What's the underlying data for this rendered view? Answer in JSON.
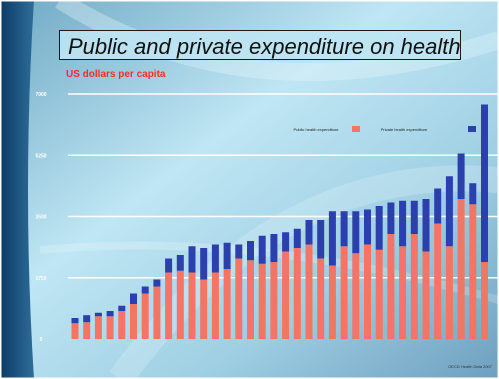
{
  "slide": {
    "title": "Public and private expenditure on health",
    "subtitle": "US dollars per capita"
  },
  "chart_data": {
    "type": "bar",
    "stacked": true,
    "title": "Public and private expenditure on health",
    "subtitle": "US dollars per capita",
    "ylim": [
      0,
      7000
    ],
    "yticks": [
      0,
      1750,
      3500,
      5250,
      7000
    ],
    "gridlines": true,
    "legend_position": "top-right",
    "source": "OECD Health Data 2007",
    "categories": [
      "",
      "",
      "",
      "",
      "",
      "",
      "",
      "",
      "",
      "",
      "",
      "",
      "",
      "",
      "",
      "",
      "",
      "",
      "",
      "",
      "",
      "",
      "",
      "",
      "",
      "",
      "",
      "",
      "",
      "",
      "",
      "",
      "",
      "",
      "",
      ""
    ],
    "series": [
      {
        "name": "Public health expenditure",
        "color": "#f47466",
        "values": [
          450,
          480,
          650,
          650,
          800,
          1000,
          1300,
          1500,
          1900,
          1950,
          1900,
          1700,
          1900,
          2000,
          2300,
          2250,
          2150,
          2200,
          2500,
          2600,
          2700,
          2300,
          2100,
          2650,
          2450,
          2700,
          2550,
          3000,
          2650,
          3000,
          2500,
          3300,
          2650,
          4000,
          3850,
          2200
        ]
      },
      {
        "name": "Private health expenditure",
        "color": "#2b3fad",
        "values": [
          150,
          200,
          100,
          150,
          150,
          300,
          200,
          200,
          400,
          450,
          750,
          900,
          800,
          750,
          400,
          550,
          800,
          800,
          550,
          550,
          700,
          1100,
          1550,
          1000,
          1200,
          1000,
          1250,
          900,
          1300,
          950,
          1500,
          1000,
          2000,
          1300,
          600,
          4500
        ]
      }
    ]
  }
}
